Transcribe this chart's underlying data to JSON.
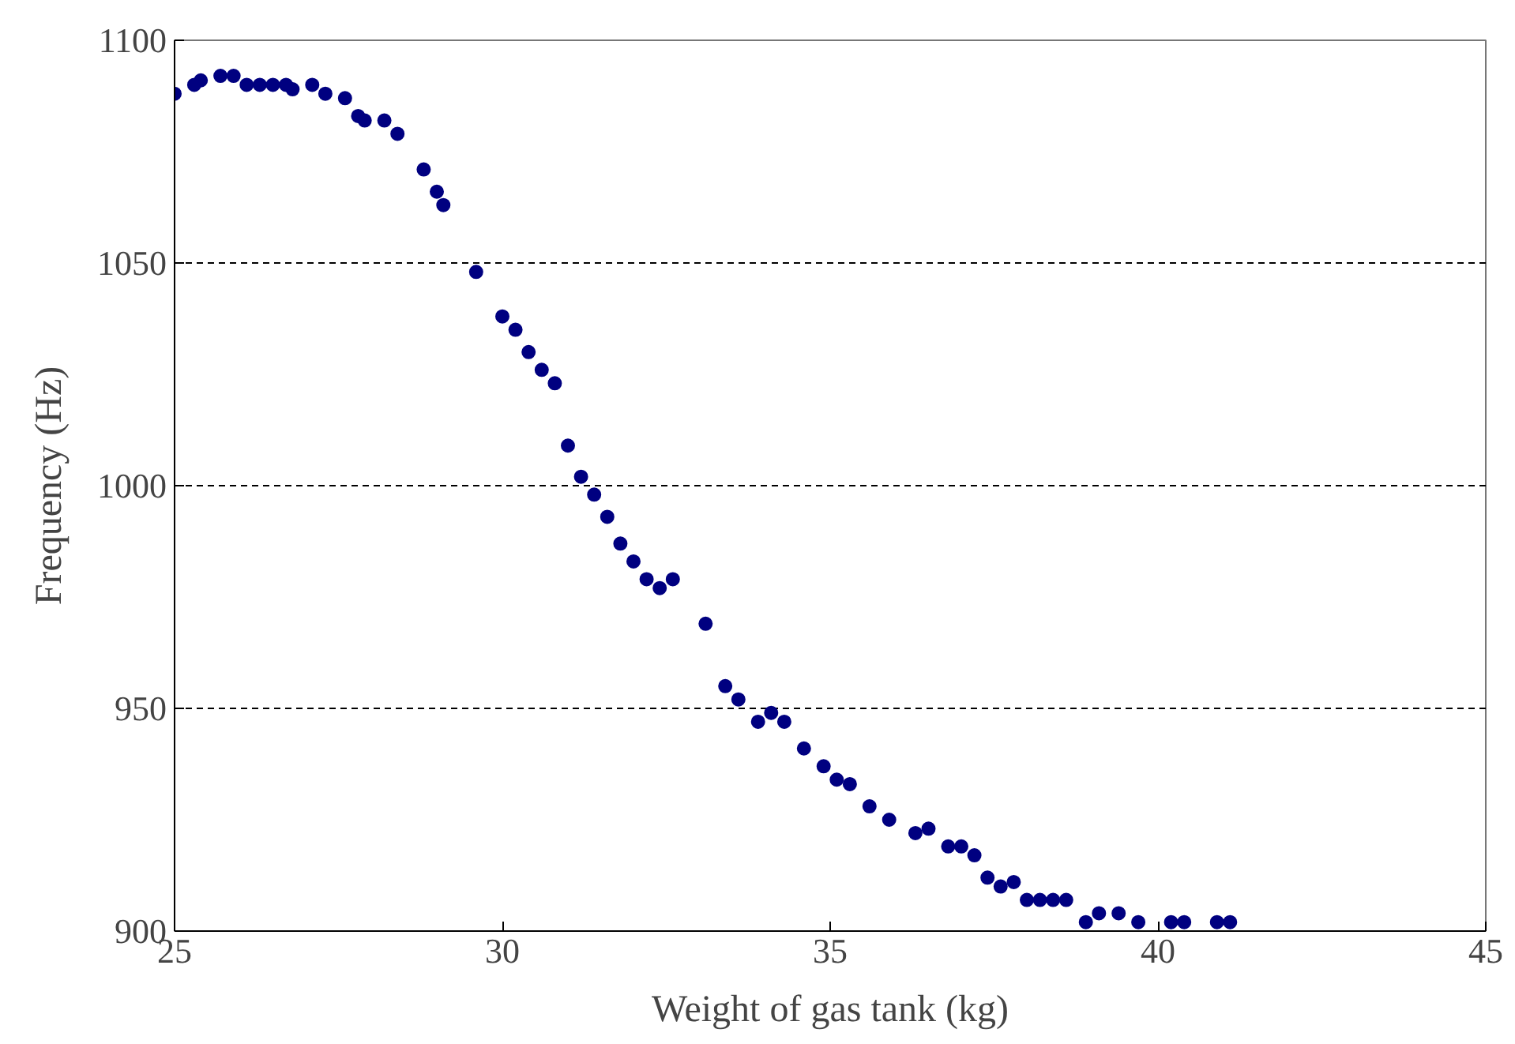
{
  "chart_data": {
    "type": "scatter",
    "xlabel": "Weight of gas tank (kg)",
    "ylabel": "Frequency (Hz)",
    "xlim": [
      25,
      45
    ],
    "xticks": [
      25,
      30,
      35,
      40,
      45
    ],
    "ylim": [
      900,
      1100
    ],
    "yticks": [
      900,
      950,
      1000,
      1050,
      1100
    ],
    "grid": "y",
    "marker": "circle",
    "series": [
      {
        "color": "#000080",
        "x": [
          25.0,
          25.3,
          25.4,
          25.7,
          25.9,
          26.1,
          26.3,
          26.5,
          26.7,
          26.8,
          27.1,
          27.3,
          27.6,
          27.8,
          27.9,
          28.2,
          28.4,
          28.8,
          29.0,
          29.1,
          29.6,
          30.0,
          30.2,
          30.4,
          30.6,
          30.8,
          31.0,
          31.2,
          31.4,
          31.6,
          31.8,
          32.0,
          32.2,
          32.4,
          32.6,
          33.1,
          33.4,
          33.6,
          33.9,
          34.1,
          34.3,
          34.6,
          34.9,
          35.1,
          35.3,
          35.6,
          35.9,
          36.3,
          36.5,
          36.8,
          37.0,
          37.2,
          37.4,
          37.6,
          37.8,
          38.0,
          38.2,
          38.4,
          38.6,
          38.9,
          39.1,
          39.4,
          39.7,
          40.2,
          40.4,
          40.9,
          41.1
        ],
        "values": [
          1088,
          1090,
          1091,
          1092,
          1092,
          1090,
          1090,
          1090,
          1090,
          1089,
          1090,
          1088,
          1087,
          1083,
          1082,
          1082,
          1079,
          1071,
          1066,
          1063,
          1048,
          1038,
          1035,
          1030,
          1026,
          1023,
          1009,
          1002,
          998,
          993,
          987,
          983,
          979,
          977,
          979,
          969,
          955,
          952,
          947,
          949,
          947,
          941,
          937,
          934,
          933,
          928,
          925,
          922,
          923,
          919,
          919,
          917,
          912,
          910,
          911,
          907,
          907,
          907,
          907,
          902,
          904,
          904,
          902,
          902,
          902,
          902,
          902
        ]
      }
    ]
  }
}
